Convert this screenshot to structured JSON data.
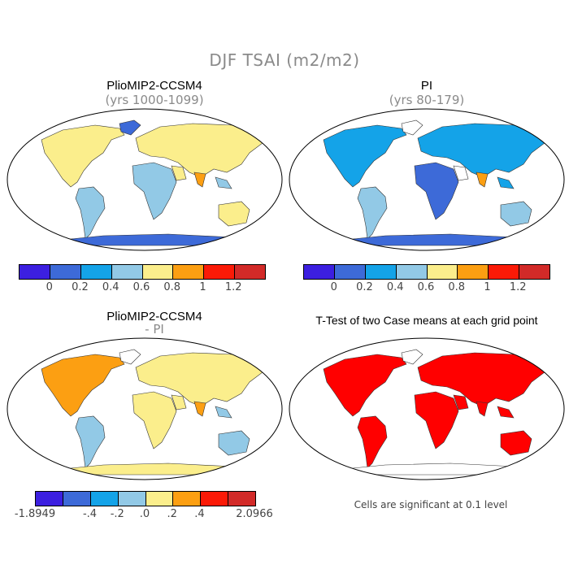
{
  "figure_title": "DJF TSAI (m2/m2)",
  "panels": [
    {
      "title": "PlioMIP2-CCSM4",
      "subtitle": "(yrs 1000-1099)"
    },
    {
      "title": "PI",
      "subtitle": "(yrs 80-179)"
    },
    {
      "title": "PlioMIP2-CCSM4",
      "subtitle": "- PI"
    },
    {
      "title": "T-Test of two Case means at each grid point",
      "subtitle": ""
    }
  ],
  "colorbar_abs": {
    "colors": [
      "#3c1fe0",
      "#3d6ad8",
      "#14a3e8",
      "#92c9e6",
      "#fbee8c",
      "#fc9f12",
      "#fb1a07",
      "#d22a28"
    ],
    "labels": [
      "0",
      "0.2",
      "0.4",
      "0.6",
      "0.8",
      "1",
      "1.2"
    ]
  },
  "colorbar_diff": {
    "colors": [
      "#3c1fe0",
      "#3d6ad8",
      "#14a3e8",
      "#92c9e6",
      "#fbee8c",
      "#fc9f12",
      "#fb1a07",
      "#d22a28"
    ],
    "labels": [
      "-1.8949",
      "-.4",
      "-.2",
      ".0",
      ".2",
      ".4",
      "2.0966"
    ]
  },
  "significance_note": "Cells are significant at 0.1 level",
  "significance_color": "#ff0000"
}
